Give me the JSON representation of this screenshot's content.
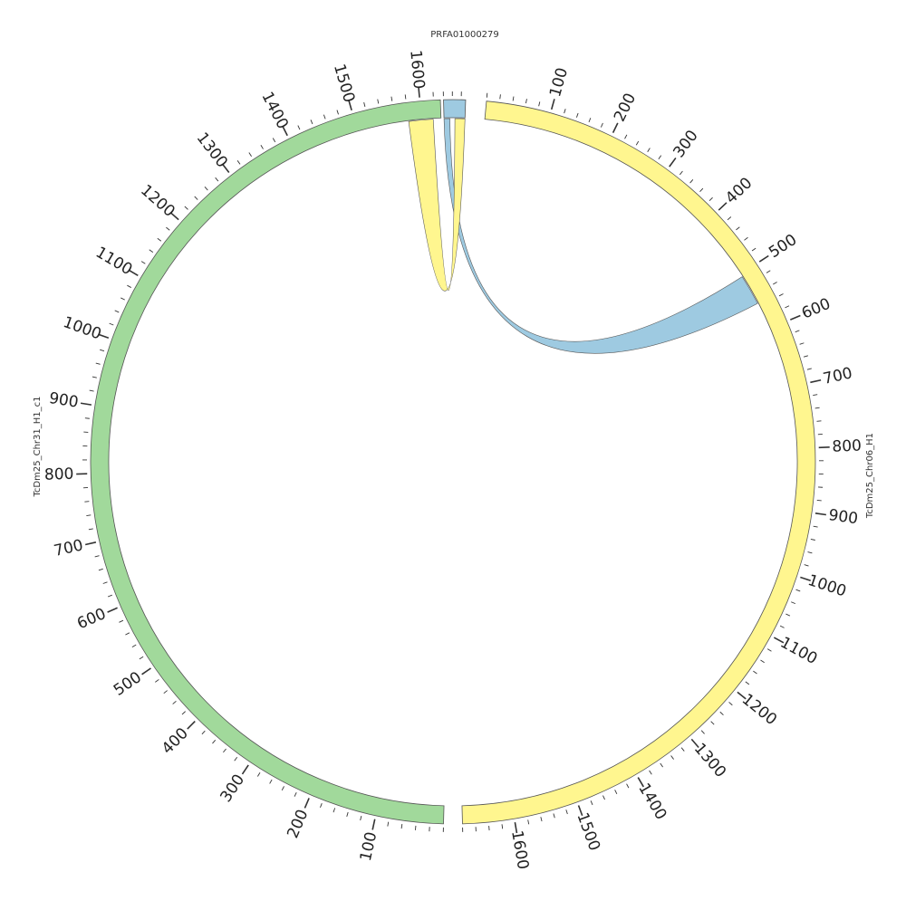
{
  "chart_data": {
    "type": "chord",
    "sequences": [
      {
        "id": "prfa",
        "name": "PRFA01000279",
        "length": 50,
        "color": "#9ecae1",
        "ticks": []
      },
      {
        "id": "chr06",
        "name": "TcDm25_Chr06_H1",
        "length": 1680,
        "color": "#fff68f",
        "ticks": [
          "100",
          "200",
          "300",
          "400",
          "500",
          "600",
          "700",
          "800",
          "900",
          "1000",
          "1100",
          "1200",
          "1300",
          "1400",
          "1500",
          "1600"
        ]
      },
      {
        "id": "chr31",
        "name": "TcDm25_Chr31_H1_c1",
        "length": 1630,
        "color": "#a1d99b",
        "ticks": [
          "100",
          "200",
          "300",
          "400",
          "500",
          "600",
          "700",
          "800",
          "900",
          "1000",
          "1100",
          "1200",
          "1300",
          "1400",
          "1500",
          "1600"
        ]
      }
    ],
    "links": [
      {
        "color": "#9ecae1",
        "from": {
          "seq": "prfa",
          "start": 0,
          "end": 14
        },
        "to": {
          "seq": "chr06",
          "start": 505,
          "end": 555
        }
      },
      {
        "color": "#fff68f",
        "from": {
          "seq": "prfa",
          "start": 26,
          "end": 50
        },
        "to": {
          "seq": "chr31",
          "start": 1580,
          "end": 1618
        }
      }
    ]
  }
}
